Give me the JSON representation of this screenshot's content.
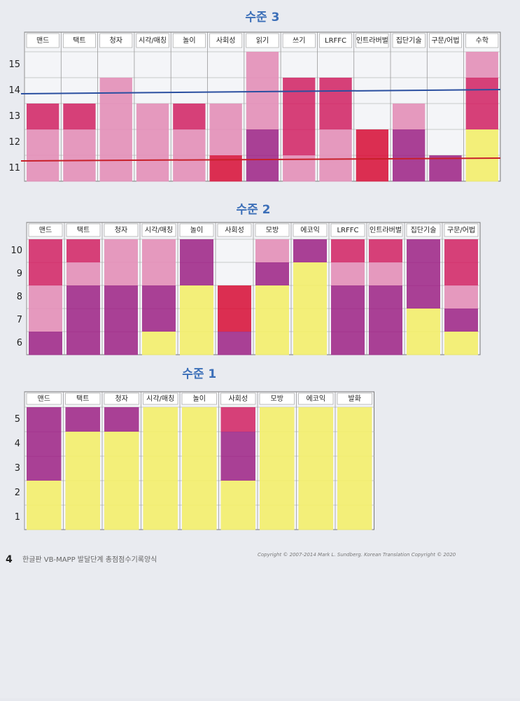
{
  "colors": {
    "W": "#f4f5f8",
    "Y": "#f2ee6e",
    "P": "#a2308c",
    "M": "#d2306c",
    "K": "#e390b8",
    "R": "#d81c42"
  },
  "sections": [
    {
      "title": "수준 3",
      "rows": [
        "15",
        "14",
        "13",
        "12",
        "11"
      ],
      "columns": [
        {
          "label": "맨드",
          "cells": [
            "W",
            "W",
            "M",
            "K",
            "K"
          ]
        },
        {
          "label": "택트",
          "cells": [
            "W",
            "W",
            "M",
            "K",
            "K"
          ]
        },
        {
          "label": "청자",
          "cells": [
            "W",
            "K",
            "K",
            "K",
            "K"
          ]
        },
        {
          "label": "시각/매칭",
          "cells": [
            "W",
            "W",
            "K",
            "K",
            "K"
          ]
        },
        {
          "label": "놀이",
          "cells": [
            "W",
            "W",
            "M",
            "K",
            "K"
          ]
        },
        {
          "label": "사회성",
          "cells": [
            "W",
            "W",
            "K",
            "K",
            "R"
          ]
        },
        {
          "label": "읽기",
          "cells": [
            "K",
            "K",
            "K",
            "P",
            "P"
          ]
        },
        {
          "label": "쓰기",
          "cells": [
            "W",
            "M",
            "M",
            "M",
            "K"
          ]
        },
        {
          "label": "LRFFC",
          "cells": [
            "W",
            "M",
            "M",
            "K",
            "K"
          ]
        },
        {
          "label": "인트라버벌",
          "cells": [
            "W",
            "W",
            "W",
            "R",
            "R"
          ]
        },
        {
          "label": "집단기술",
          "cells": [
            "W",
            "W",
            "K",
            "P",
            "P"
          ]
        },
        {
          "label": "구문/어법",
          "cells": [
            "W",
            "W",
            "W",
            "W",
            "P"
          ]
        },
        {
          "label": "수학",
          "cells": [
            "K",
            "M",
            "M",
            "Y",
            "Y"
          ]
        }
      ]
    },
    {
      "title": "수준 2",
      "rows": [
        "10",
        "9",
        "8",
        "7",
        "6"
      ],
      "columns": [
        {
          "label": "맨드",
          "cells": [
            "M",
            "M",
            "K",
            "K",
            "P"
          ]
        },
        {
          "label": "택트",
          "cells": [
            "M",
            "K",
            "P",
            "P",
            "P"
          ]
        },
        {
          "label": "청자",
          "cells": [
            "K",
            "K",
            "P",
            "P",
            "P"
          ]
        },
        {
          "label": "시각/매칭",
          "cells": [
            "K",
            "K",
            "P",
            "P",
            "Y"
          ]
        },
        {
          "label": "놀이",
          "cells": [
            "P",
            "P",
            "Y",
            "Y",
            "Y"
          ]
        },
        {
          "label": "사회성",
          "cells": [
            "W",
            "W",
            "R",
            "R",
            "P"
          ]
        },
        {
          "label": "모방",
          "cells": [
            "K",
            "P",
            "Y",
            "Y",
            "Y"
          ]
        },
        {
          "label": "에코익",
          "cells": [
            "P",
            "Y",
            "Y",
            "Y",
            "Y"
          ]
        },
        {
          "label": "LRFFC",
          "cells": [
            "M",
            "K",
            "P",
            "P",
            "P"
          ]
        },
        {
          "label": "인트라버벌",
          "cells": [
            "M",
            "K",
            "P",
            "P",
            "P"
          ]
        },
        {
          "label": "집단기술",
          "cells": [
            "P",
            "P",
            "P",
            "Y",
            "Y"
          ]
        },
        {
          "label": "구문/어법",
          "cells": [
            "M",
            "M",
            "K",
            "P",
            "Y"
          ]
        }
      ]
    },
    {
      "title": "수준 1",
      "rows": [
        "5",
        "4",
        "3",
        "2",
        "1"
      ],
      "columns": [
        {
          "label": "맨드",
          "cells": [
            "P",
            "P",
            "P",
            "Y",
            "Y"
          ]
        },
        {
          "label": "택트",
          "cells": [
            "P",
            "Y",
            "Y",
            "Y",
            "Y"
          ]
        },
        {
          "label": "청자",
          "cells": [
            "P",
            "Y",
            "Y",
            "Y",
            "Y"
          ]
        },
        {
          "label": "시각/매칭",
          "cells": [
            "Y",
            "Y",
            "Y",
            "Y",
            "Y"
          ]
        },
        {
          "label": "놀이",
          "cells": [
            "Y",
            "Y",
            "Y",
            "Y",
            "Y"
          ]
        },
        {
          "label": "사회성",
          "cells": [
            "M",
            "P",
            "P",
            "Y",
            "Y"
          ]
        },
        {
          "label": "모방",
          "cells": [
            "Y",
            "Y",
            "Y",
            "Y",
            "Y"
          ]
        },
        {
          "label": "에코익",
          "cells": [
            "Y",
            "Y",
            "Y",
            "Y",
            "Y"
          ]
        },
        {
          "label": "발화",
          "cells": [
            "Y",
            "Y",
            "Y",
            "Y",
            "Y"
          ]
        }
      ]
    }
  ],
  "footer": {
    "page": "4",
    "form": "한글판 VB-MAPP 발달단계 총점점수기록양식",
    "copyright": "Copyright © 2007-2014 Mark L. Sundberg.  Korean Translation Copyright © 2020"
  }
}
